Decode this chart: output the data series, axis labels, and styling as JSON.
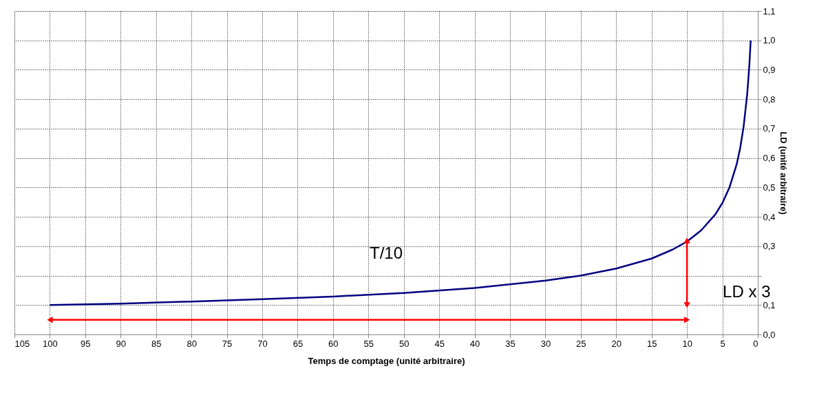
{
  "chart_data": {
    "type": "line",
    "xlabel": "Temps de comptage (unité arbitraire)",
    "ylabel": "LD (unité arbitraire)",
    "xlim": [
      105,
      0
    ],
    "xticks": [
      105,
      100,
      95,
      90,
      85,
      80,
      75,
      70,
      65,
      60,
      55,
      50,
      45,
      40,
      35,
      30,
      25,
      20,
      15,
      10,
      5,
      0
    ],
    "ylim": [
      0,
      1.1
    ],
    "yticks": [
      {
        "value": 0,
        "label": "0,0"
      },
      {
        "value": 0.1,
        "label": "0,1"
      },
      {
        "value": 0.2,
        "label": null
      },
      {
        "value": 0.3,
        "label": "0,3"
      },
      {
        "value": 0.4,
        "label": "0,4"
      },
      {
        "value": 0.5,
        "label": "0,5"
      },
      {
        "value": 0.6,
        "label": "0,6"
      },
      {
        "value": 0.7,
        "label": "0,7"
      },
      {
        "value": 0.8,
        "label": "0,8"
      },
      {
        "value": 0.9,
        "label": "0,9"
      },
      {
        "value": 1.0,
        "label": "1,0"
      },
      {
        "value": 1.1,
        "label": "1,1"
      }
    ],
    "grid": true,
    "line_style": "solid",
    "series": [
      {
        "color": "#000080",
        "x": [
          100,
          90,
          80,
          70,
          60,
          50,
          40,
          30,
          25,
          20,
          15,
          12,
          10,
          8,
          6,
          5,
          4,
          3,
          2.5,
          2,
          1.5,
          1.2,
          1
        ],
        "values": [
          0.1,
          0.105,
          0.112,
          0.12,
          0.129,
          0.141,
          0.158,
          0.183,
          0.2,
          0.224,
          0.258,
          0.289,
          0.316,
          0.354,
          0.408,
          0.447,
          0.5,
          0.577,
          0.632,
          0.707,
          0.816,
          0.913,
          1.0
        ]
      },
      {
        "type": "line",
        "color": "#ff0000",
        "marker": "triangle",
        "x": [
          100,
          10
        ],
        "values": [
          0.05,
          0.05
        ]
      },
      {
        "type": "line",
        "color": "#ff0000",
        "marker": "triangle",
        "x": [
          10,
          10
        ],
        "values": [
          0.1,
          0.32
        ]
      }
    ],
    "annotations": [
      "T/10",
      "LD x 3"
    ]
  }
}
